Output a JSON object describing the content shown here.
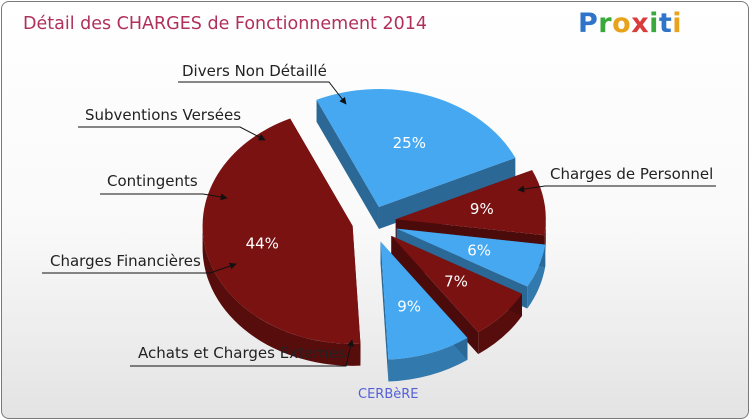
{
  "header": {
    "title": "Détail des CHARGES de Fonctionnement 2014",
    "logo": "Proxiti",
    "commune": "CERBèRE"
  },
  "colors": {
    "title": "#b0305a",
    "dark_red": "#7a1212",
    "dark_red_side": "#5a0a0a",
    "light_blue": "#45a8f0",
    "light_blue_side": "#2e86cf"
  },
  "chart_data": {
    "type": "pie",
    "title": "Détail des CHARGES de Fonctionnement 2014",
    "subtitle": "CERBèRE",
    "style": "3d-exploded",
    "slices": [
      {
        "name": "Charges de Personnel",
        "value": 44,
        "label": "44%",
        "color": "#7a1212"
      },
      {
        "name": "Achats et Charges Externes",
        "value": 25,
        "label": "25%",
        "color": "#45a8f0"
      },
      {
        "name": "Charges Financières",
        "value": 9,
        "label": "9%",
        "color": "#7a1212"
      },
      {
        "name": "Contingents",
        "value": 6,
        "label": "6%",
        "color": "#45a8f0"
      },
      {
        "name": "Subventions Versées",
        "value": 7,
        "label": "7%",
        "color": "#7a1212"
      },
      {
        "name": "Divers Non Détaillé",
        "value": 9,
        "label": "9%",
        "color": "#45a8f0"
      }
    ]
  }
}
